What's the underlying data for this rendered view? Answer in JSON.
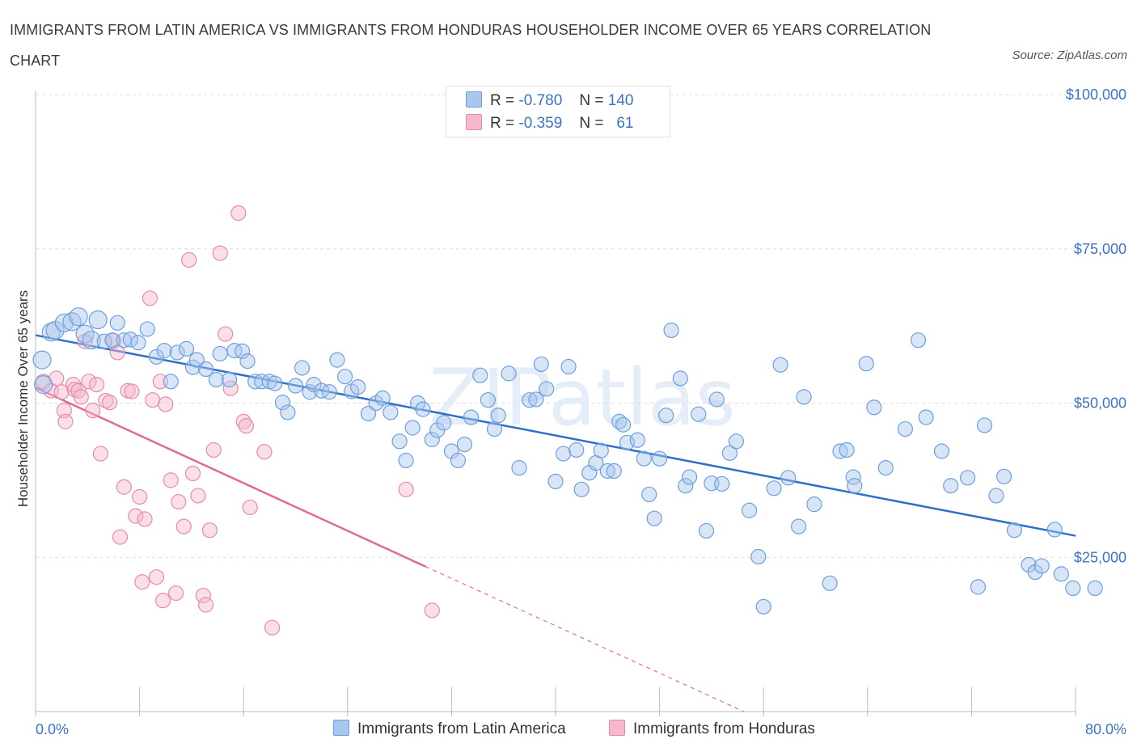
{
  "header": {
    "title": "IMMIGRANTS FROM LATIN AMERICA VS IMMIGRANTS FROM HONDURAS HOUSEHOLDER INCOME OVER 65 YEARS CORRELATION CHART",
    "source": "Source: ZipAtlas.com"
  },
  "legend": {
    "r_label": "R =",
    "n_label": "N =",
    "series": [
      {
        "r": "-0.780",
        "n": "140"
      },
      {
        "r": "-0.359",
        "n": "61"
      }
    ]
  },
  "colors": {
    "blue_fill": "#a9c6ee",
    "blue_stroke": "#6d9fdc",
    "blue_line": "#2f6fc9",
    "pink_fill": "#f5b8cc",
    "pink_stroke": "#e88aab",
    "pink_line": "#e06a92",
    "grid": "#dddddd",
    "tick_label": "#3b74c4"
  },
  "watermark": "ZIPatlas",
  "chart_data": {
    "type": "scatter",
    "title": "IMMIGRANTS FROM LATIN AMERICA VS IMMIGRANTS FROM HONDURAS HOUSEHOLDER INCOME OVER 65 YEARS CORRELATION CHART",
    "xlabel": "",
    "ylabel": "Householder Income Over 65 years",
    "xlim": [
      0,
      80
    ],
    "ylim": [
      0,
      100000
    ],
    "x_tick_labels": [
      "0.0%",
      "80.0%"
    ],
    "y_ticks": [
      25000,
      50000,
      75000,
      100000
    ],
    "y_tick_labels": [
      "$25,000",
      "$50,000",
      "$75,000",
      "$100,000"
    ],
    "grid": true,
    "legend_placement": "top-center",
    "series": [
      {
        "name": "Immigrants from Latin America",
        "trend": {
          "x": [
            0,
            80
          ],
          "y": [
            61000,
            28500
          ]
        },
        "points": [
          [
            0.5,
            57000
          ],
          [
            0.6,
            53000
          ],
          [
            1.2,
            61500
          ],
          [
            1.5,
            61800
          ],
          [
            2.2,
            63000
          ],
          [
            2.8,
            63200
          ],
          [
            3.3,
            64000
          ],
          [
            3.8,
            61200
          ],
          [
            4.3,
            60200
          ],
          [
            4.8,
            63500
          ],
          [
            5.3,
            60000
          ],
          [
            5.9,
            60200
          ],
          [
            6.3,
            63000
          ],
          [
            6.8,
            60200
          ],
          [
            7.3,
            60300
          ],
          [
            7.9,
            59800
          ],
          [
            8.6,
            62000
          ],
          [
            9.3,
            57500
          ],
          [
            9.9,
            58500
          ],
          [
            10.4,
            53500
          ],
          [
            10.9,
            58200
          ],
          [
            11.6,
            58800
          ],
          [
            12.1,
            55800
          ],
          [
            12.4,
            57000
          ],
          [
            13.1,
            55500
          ],
          [
            13.9,
            53800
          ],
          [
            14.2,
            58000
          ],
          [
            14.9,
            53800
          ],
          [
            15.3,
            58500
          ],
          [
            15.9,
            58400
          ],
          [
            16.3,
            56800
          ],
          [
            16.9,
            53500
          ],
          [
            17.4,
            53500
          ],
          [
            18.0,
            53500
          ],
          [
            18.4,
            53200
          ],
          [
            19.0,
            50100
          ],
          [
            19.4,
            48500
          ],
          [
            20.0,
            52800
          ],
          [
            20.5,
            55700
          ],
          [
            21.1,
            51800
          ],
          [
            21.4,
            53000
          ],
          [
            22.0,
            52000
          ],
          [
            22.6,
            51800
          ],
          [
            23.2,
            57000
          ],
          [
            23.8,
            54300
          ],
          [
            24.3,
            51900
          ],
          [
            24.8,
            52600
          ],
          [
            25.6,
            48300
          ],
          [
            26.2,
            50000
          ],
          [
            26.7,
            50800
          ],
          [
            27.3,
            48500
          ],
          [
            28.0,
            43800
          ],
          [
            28.5,
            40700
          ],
          [
            29.0,
            46000
          ],
          [
            29.4,
            50000
          ],
          [
            29.8,
            49000
          ],
          [
            30.5,
            44100
          ],
          [
            30.9,
            45600
          ],
          [
            31.4,
            46800
          ],
          [
            32.0,
            42200
          ],
          [
            32.5,
            40700
          ],
          [
            33.0,
            43300
          ],
          [
            33.5,
            47700
          ],
          [
            34.2,
            54500
          ],
          [
            34.8,
            50500
          ],
          [
            35.3,
            45800
          ],
          [
            35.6,
            48000
          ],
          [
            36.4,
            54800
          ],
          [
            37.2,
            39500
          ],
          [
            38.0,
            50500
          ],
          [
            38.5,
            50600
          ],
          [
            38.9,
            56300
          ],
          [
            39.3,
            52300
          ],
          [
            40.0,
            37300
          ],
          [
            40.6,
            41800
          ],
          [
            41.0,
            55900
          ],
          [
            41.6,
            42400
          ],
          [
            42.0,
            36000
          ],
          [
            42.6,
            38700
          ],
          [
            43.1,
            40300
          ],
          [
            43.5,
            42300
          ],
          [
            44.0,
            39000
          ],
          [
            44.5,
            39000
          ],
          [
            44.9,
            47000
          ],
          [
            45.2,
            46500
          ],
          [
            45.5,
            43600
          ],
          [
            46.3,
            44000
          ],
          [
            46.8,
            41000
          ],
          [
            47.2,
            35200
          ],
          [
            47.6,
            31300
          ],
          [
            48.0,
            41000
          ],
          [
            48.5,
            48000
          ],
          [
            48.9,
            61800
          ],
          [
            49.6,
            54000
          ],
          [
            50.0,
            36600
          ],
          [
            50.3,
            38000
          ],
          [
            51.0,
            48200
          ],
          [
            51.6,
            29300
          ],
          [
            52.0,
            37000
          ],
          [
            52.4,
            50600
          ],
          [
            52.8,
            36900
          ],
          [
            53.4,
            41900
          ],
          [
            53.9,
            43800
          ],
          [
            54.9,
            32600
          ],
          [
            55.6,
            25100
          ],
          [
            56.0,
            17000
          ],
          [
            56.8,
            36200
          ],
          [
            57.3,
            56200
          ],
          [
            57.9,
            37900
          ],
          [
            58.7,
            30000
          ],
          [
            59.1,
            51000
          ],
          [
            59.9,
            33600
          ],
          [
            61.1,
            20800
          ],
          [
            61.9,
            42200
          ],
          [
            62.4,
            42400
          ],
          [
            62.9,
            38000
          ],
          [
            63.0,
            36600
          ],
          [
            63.9,
            56400
          ],
          [
            64.5,
            49300
          ],
          [
            65.4,
            39500
          ],
          [
            66.9,
            45800
          ],
          [
            67.9,
            60200
          ],
          [
            68.5,
            47700
          ],
          [
            69.7,
            42200
          ],
          [
            70.4,
            36600
          ],
          [
            71.7,
            37900
          ],
          [
            72.5,
            20200
          ],
          [
            73.0,
            46400
          ],
          [
            73.9,
            35000
          ],
          [
            74.5,
            38100
          ],
          [
            75.3,
            29400
          ],
          [
            76.4,
            23800
          ],
          [
            76.9,
            22600
          ],
          [
            77.4,
            23600
          ],
          [
            78.4,
            29500
          ],
          [
            78.9,
            22300
          ],
          [
            79.8,
            20000
          ],
          [
            81.5,
            20000
          ]
        ]
      },
      {
        "name": "Immigrants from Honduras",
        "trend": {
          "x": [
            0,
            30
          ],
          "y": [
            52500,
            23500
          ]
        },
        "trend_extension": {
          "x": [
            30,
            54.5
          ],
          "y": [
            23500,
            0
          ]
        },
        "points": [
          [
            0.6,
            53500
          ],
          [
            1.2,
            52000
          ],
          [
            1.6,
            54000
          ],
          [
            2.0,
            51800
          ],
          [
            2.2,
            48800
          ],
          [
            2.3,
            47000
          ],
          [
            2.9,
            53000
          ],
          [
            3.0,
            52200
          ],
          [
            3.3,
            52000
          ],
          [
            3.5,
            51000
          ],
          [
            3.8,
            60000
          ],
          [
            4.1,
            53500
          ],
          [
            4.4,
            48800
          ],
          [
            4.7,
            53000
          ],
          [
            5.0,
            41800
          ],
          [
            5.4,
            50400
          ],
          [
            5.7,
            50100
          ],
          [
            6.0,
            60100
          ],
          [
            6.3,
            58200
          ],
          [
            6.5,
            28300
          ],
          [
            6.8,
            36400
          ],
          [
            7.1,
            52000
          ],
          [
            7.4,
            51900
          ],
          [
            7.7,
            31700
          ],
          [
            8.0,
            34800
          ],
          [
            8.2,
            21000
          ],
          [
            8.4,
            31200
          ],
          [
            8.8,
            67000
          ],
          [
            9.0,
            50500
          ],
          [
            9.3,
            21800
          ],
          [
            9.6,
            53500
          ],
          [
            9.8,
            18000
          ],
          [
            10.0,
            49800
          ],
          [
            10.4,
            37500
          ],
          [
            10.8,
            19200
          ],
          [
            11.0,
            34000
          ],
          [
            11.4,
            30000
          ],
          [
            11.8,
            73200
          ],
          [
            12.1,
            38600
          ],
          [
            12.5,
            35000
          ],
          [
            12.9,
            18800
          ],
          [
            13.1,
            17300
          ],
          [
            13.4,
            29400
          ],
          [
            13.7,
            42400
          ],
          [
            14.2,
            74300
          ],
          [
            14.6,
            61200
          ],
          [
            15.0,
            52400
          ],
          [
            15.6,
            80800
          ],
          [
            16.0,
            47000
          ],
          [
            16.2,
            46300
          ],
          [
            16.5,
            33100
          ],
          [
            17.6,
            42100
          ],
          [
            18.2,
            13600
          ],
          [
            28.5,
            36000
          ],
          [
            30.5,
            16400
          ]
        ]
      }
    ]
  }
}
